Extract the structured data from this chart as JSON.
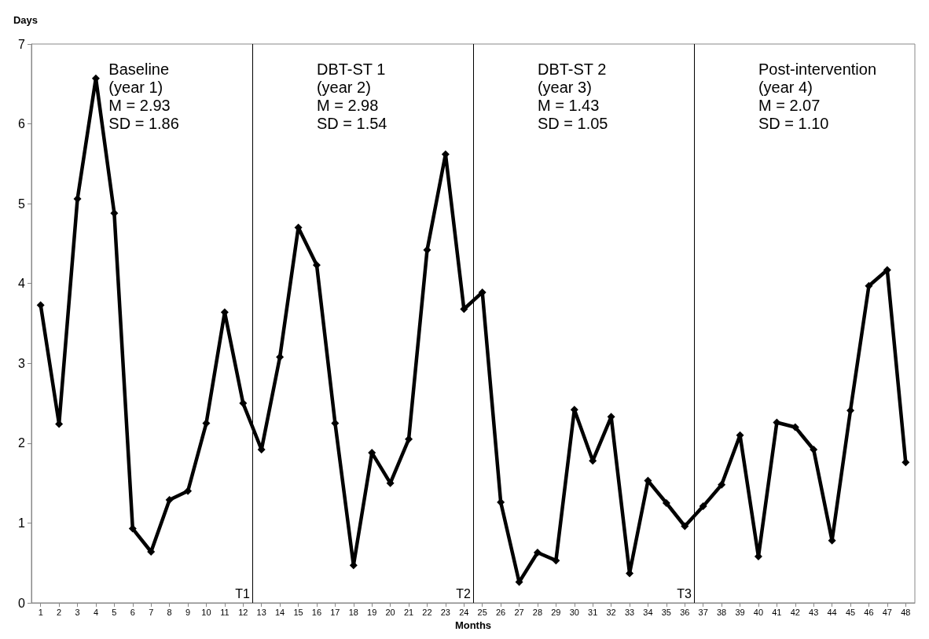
{
  "chart_data": {
    "type": "line",
    "xlabel": "Months",
    "ylabel": "Days",
    "x": [
      1,
      2,
      3,
      4,
      5,
      6,
      7,
      8,
      9,
      10,
      11,
      12,
      13,
      14,
      15,
      16,
      17,
      18,
      19,
      20,
      21,
      22,
      23,
      24,
      25,
      26,
      27,
      28,
      29,
      30,
      31,
      32,
      33,
      34,
      35,
      36,
      37,
      38,
      39,
      40,
      41,
      42,
      43,
      44,
      45,
      46,
      47,
      48
    ],
    "series": [
      {
        "color": "#000000",
        "values": [
          3.73,
          2.24,
          5.06,
          6.57,
          4.88,
          0.93,
          0.64,
          1.29,
          1.4,
          2.25,
          3.64,
          2.5,
          1.92,
          3.08,
          4.7,
          4.23,
          2.25,
          0.47,
          1.88,
          1.5,
          2.05,
          4.42,
          5.62,
          3.68,
          3.89,
          1.26,
          0.26,
          0.63,
          0.53,
          2.42,
          1.78,
          2.33,
          0.37,
          1.53,
          1.25,
          0.96,
          1.21,
          1.48,
          2.1,
          0.58,
          2.26,
          2.2,
          1.92,
          0.78,
          2.41,
          3.97,
          4.17,
          1.76
        ]
      }
    ],
    "xlim": [
      0.5,
      48.5
    ],
    "xticks": [
      1,
      2,
      3,
      4,
      5,
      6,
      7,
      8,
      9,
      10,
      11,
      12,
      13,
      14,
      15,
      16,
      17,
      18,
      19,
      20,
      21,
      22,
      23,
      24,
      25,
      26,
      27,
      28,
      29,
      30,
      31,
      32,
      33,
      34,
      35,
      36,
      37,
      38,
      39,
      40,
      41,
      42,
      43,
      44,
      45,
      46,
      47,
      48
    ],
    "ylim": [
      0,
      7
    ],
    "yticks": [
      0,
      1,
      2,
      3,
      4,
      5,
      6,
      7
    ],
    "ref_lines": [
      {
        "axis": "x",
        "value": 12.5,
        "label": "T1",
        "color": "#000000"
      },
      {
        "axis": "x",
        "value": 24.5,
        "label": "T2",
        "color": "#000000"
      },
      {
        "axis": "x",
        "value": 36.5,
        "label": "T3",
        "color": "#000000"
      }
    ],
    "annotations": [
      "Baseline\n(year 1)\nM = 2.93\nSD = 1.86",
      "DBT-ST 1\n(year 2)\nM = 2.98\nSD = 1.54",
      "DBT-ST 2\n(year 3)\nM = 1.43\nSD = 1.05",
      "Post-intervention\n(year 4)\nM = 2.07\nSD = 1.10"
    ],
    "grid": false,
    "marker": "diamond",
    "line_style": "solid"
  }
}
